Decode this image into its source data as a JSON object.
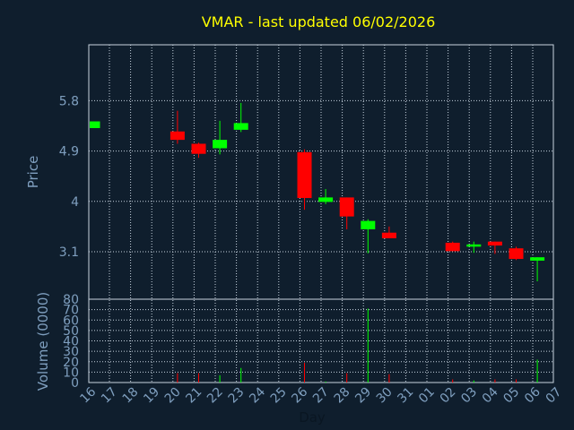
{
  "chart_data": [
    {
      "type": "candlestick",
      "title": "VMAR - last updated 06/02/2026",
      "ylabel": "Price",
      "ylim": [
        2.25,
        6.8
      ],
      "yticks": [
        "5.8",
        "4.9",
        "4",
        "3.1"
      ],
      "ytick_values": [
        5.8,
        4.9,
        4.0,
        3.1
      ],
      "grid": true,
      "up_color": "#00ff00",
      "down_color": "#ff0000",
      "candles": [
        {
          "day": "16",
          "open": 5.31,
          "high": 5.43,
          "low": 5.31,
          "close": 5.43
        },
        {
          "day": "20",
          "open": 5.25,
          "high": 5.62,
          "low": 5.03,
          "close": 5.1
        },
        {
          "day": "21",
          "open": 5.03,
          "high": 5.05,
          "low": 4.78,
          "close": 4.85
        },
        {
          "day": "22",
          "open": 4.95,
          "high": 5.44,
          "low": 4.84,
          "close": 5.1
        },
        {
          "day": "23",
          "open": 5.28,
          "high": 5.76,
          "low": 5.24,
          "close": 5.4
        },
        {
          "day": "26",
          "open": 4.88,
          "high": 4.93,
          "low": 3.85,
          "close": 4.06
        },
        {
          "day": "27",
          "open": 3.99,
          "high": 4.22,
          "low": 3.95,
          "close": 4.07
        },
        {
          "day": "28",
          "open": 4.07,
          "high": 4.07,
          "low": 3.5,
          "close": 3.73
        },
        {
          "day": "29",
          "open": 3.5,
          "high": 3.68,
          "low": 3.07,
          "close": 3.65
        },
        {
          "day": "30",
          "open": 3.44,
          "high": 3.55,
          "low": 3.34,
          "close": 3.34
        },
        {
          "day": "02",
          "open": 3.26,
          "high": 3.28,
          "low": 3.11,
          "close": 3.11
        },
        {
          "day": "03",
          "open": 3.19,
          "high": 3.28,
          "low": 3.08,
          "close": 3.23
        },
        {
          "day": "04",
          "open": 3.28,
          "high": 3.28,
          "low": 3.06,
          "close": 3.21
        },
        {
          "day": "05",
          "open": 3.16,
          "high": 3.19,
          "low": 2.95,
          "close": 2.97
        },
        {
          "day": "06",
          "open": 2.94,
          "high": 3.0,
          "low": 2.57,
          "close": 3.0
        }
      ]
    },
    {
      "type": "bar",
      "ylabel": "Volume (0000)",
      "xlabel": "Day",
      "ylim": [
        0,
        80
      ],
      "yticks": [
        "0",
        "10",
        "20",
        "30",
        "40",
        "50",
        "60",
        "70",
        "80"
      ],
      "ytick_values": [
        0,
        10,
        20,
        30,
        40,
        50,
        60,
        70,
        80
      ],
      "categories": [
        "16",
        "17",
        "18",
        "19",
        "20",
        "21",
        "22",
        "23",
        "24",
        "25",
        "26",
        "27",
        "28",
        "29",
        "30",
        "31",
        "01",
        "02",
        "03",
        "04",
        "05",
        "06",
        "07"
      ],
      "bars": [
        {
          "day": "20",
          "value": 9,
          "color": "#ff0000"
        },
        {
          "day": "21",
          "value": 9,
          "color": "#ff0000"
        },
        {
          "day": "22",
          "value": 7,
          "color": "#00ff00"
        },
        {
          "day": "23",
          "value": 14,
          "color": "#00ff00"
        },
        {
          "day": "26",
          "value": 19,
          "color": "#ff0000"
        },
        {
          "day": "27",
          "value": 1,
          "color": "#00ff00"
        },
        {
          "day": "28",
          "value": 9,
          "color": "#ff0000"
        },
        {
          "day": "29",
          "value": 71,
          "color": "#00ff00"
        },
        {
          "day": "30",
          "value": 8,
          "color": "#ff0000"
        },
        {
          "day": "02",
          "value": 3,
          "color": "#ff0000"
        },
        {
          "day": "03",
          "value": 2,
          "color": "#00ff00"
        },
        {
          "day": "04",
          "value": 3,
          "color": "#ff0000"
        },
        {
          "day": "05",
          "value": 3,
          "color": "#ff0000"
        },
        {
          "day": "06",
          "value": 22,
          "color": "#00ff00"
        }
      ]
    }
  ],
  "colors": {
    "background": "#0f1e2d",
    "title": "#ffff00",
    "axis_text": "#7f9fbf",
    "axis_line": "#c8d4e0",
    "grid": "#c8d4e0"
  }
}
